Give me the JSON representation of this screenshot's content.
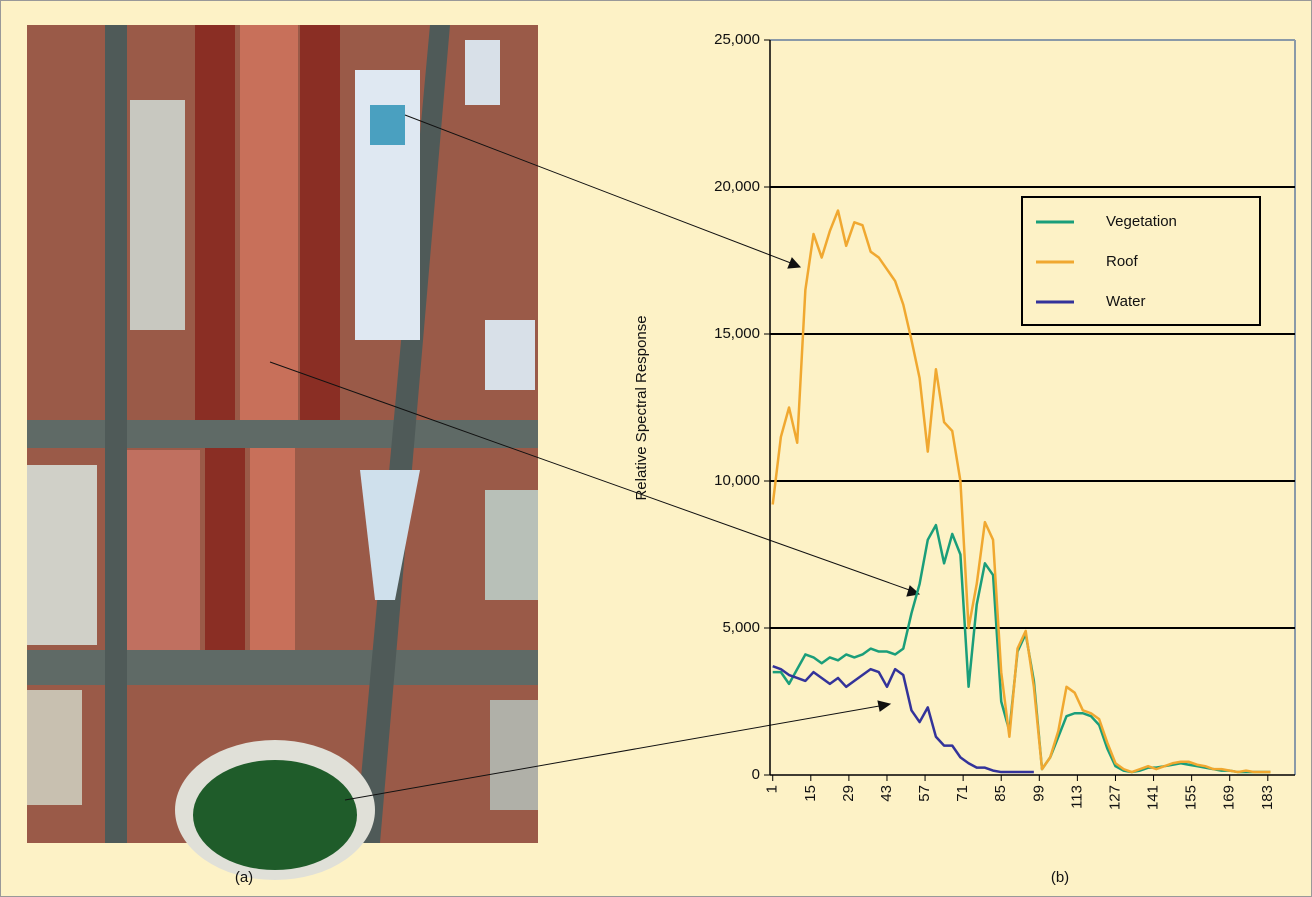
{
  "panel_labels": {
    "a": "(a)",
    "b": "(b)"
  },
  "chart_data": {
    "type": "line",
    "y_label": "Relative Spectral Response",
    "x": [
      1,
      4,
      7,
      10,
      13,
      16,
      19,
      22,
      25,
      28,
      31,
      34,
      37,
      40,
      43,
      46,
      49,
      52,
      55,
      58,
      61,
      64,
      67,
      70,
      73,
      76,
      79,
      82,
      85,
      88,
      91,
      94,
      97,
      100,
      103,
      106,
      109,
      112,
      115,
      118,
      121,
      124,
      127,
      130,
      133,
      136,
      139,
      142,
      145,
      148,
      151,
      154,
      157,
      160,
      163,
      166,
      169,
      172,
      175,
      178,
      181,
      184
    ],
    "series": [
      {
        "name": "Vegetation",
        "color": "#1a9e7a",
        "values": [
          3500,
          3500,
          3100,
          3600,
          4100,
          4000,
          3800,
          4000,
          3900,
          4100,
          4000,
          4100,
          4300,
          4200,
          4200,
          4100,
          4300,
          5500,
          6500,
          8000,
          8500,
          7200,
          8200,
          7500,
          3000,
          5800,
          7200,
          6800,
          2500,
          1500,
          4200,
          4800,
          3200,
          200,
          600,
          1300,
          2000,
          2100,
          2100,
          2000,
          1700,
          900,
          300,
          150,
          100,
          150,
          250,
          250,
          300,
          350,
          400,
          350,
          300,
          250,
          200,
          150,
          150,
          100,
          100,
          100,
          100,
          100
        ]
      },
      {
        "name": "Roof",
        "color": "#f0a830",
        "values": [
          9200,
          11500,
          12500,
          11300,
          16500,
          18400,
          17600,
          18500,
          19200,
          18000,
          18800,
          18700,
          17800,
          17600,
          17200,
          16800,
          16000,
          14800,
          13500,
          11000,
          13800,
          12000,
          11700,
          10000,
          5000,
          6500,
          8600,
          8000,
          3500,
          1300,
          4300,
          4900,
          3000,
          200,
          600,
          1500,
          3000,
          2800,
          2200,
          2100,
          1900,
          1100,
          400,
          200,
          100,
          200,
          300,
          200,
          300,
          400,
          450,
          450,
          350,
          300,
          200,
          200,
          150,
          100,
          150,
          100,
          100,
          100
        ]
      },
      {
        "name": "Water",
        "color": "#33339a",
        "values": [
          3700,
          3600,
          3400,
          3300,
          3200,
          3500,
          3300,
          3100,
          3300,
          3000,
          3200,
          3400,
          3600,
          3500,
          3000,
          3600,
          3400,
          2200,
          1800,
          2300,
          1300,
          1000,
          1000,
          600,
          400,
          250,
          250,
          150,
          100,
          100,
          100,
          100,
          100,
          null,
          null,
          null,
          null,
          null,
          null,
          null,
          null,
          null,
          null,
          null,
          null,
          null,
          null,
          null,
          null,
          null,
          null,
          null,
          null,
          null,
          null,
          null,
          null,
          null,
          null,
          null,
          null,
          null
        ]
      }
    ],
    "xlim": [
      0,
      193
    ],
    "xticks": [
      1,
      15,
      29,
      43,
      57,
      71,
      85,
      99,
      113,
      127,
      141,
      155,
      169,
      183
    ],
    "ylim": [
      0,
      25000
    ],
    "yticks": [
      {
        "value": 0,
        "label": "0"
      },
      {
        "value": 5000,
        "label": "5,000"
      },
      {
        "value": 10000,
        "label": "10,000"
      },
      {
        "value": 15000,
        "label": "15,000"
      },
      {
        "value": 20000,
        "label": "20,000"
      },
      {
        "value": 25000,
        "label": "25,000"
      }
    ],
    "grid": true,
    "legend": "upper right"
  }
}
